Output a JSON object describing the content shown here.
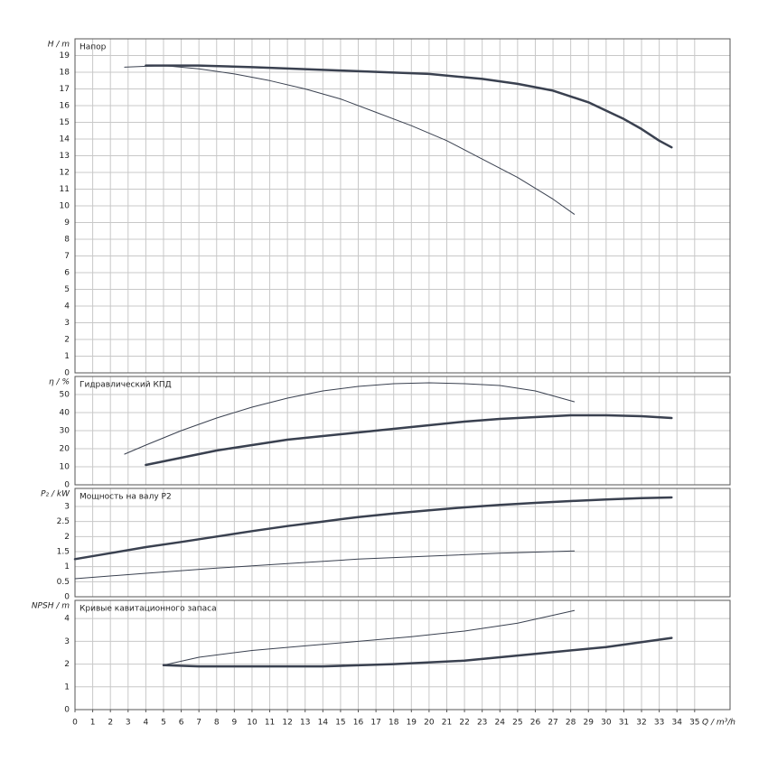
{
  "chart_data": [
    {
      "type": "line",
      "y_label": "H / m",
      "panel_label": "Напор",
      "xlim": [
        0,
        37
      ],
      "ylim": [
        0,
        20
      ],
      "yticks": [
        0,
        1,
        2,
        3,
        4,
        5,
        6,
        7,
        8,
        9,
        10,
        11,
        12,
        13,
        14,
        15,
        16,
        17,
        18,
        19
      ],
      "grid": true,
      "series": [
        {
          "color": "#3a4150",
          "line_width": 2.5,
          "x": [
            4,
            7,
            10,
            15,
            20,
            23,
            25,
            27,
            29,
            31,
            32,
            33,
            33.7
          ],
          "values": [
            18.4,
            18.4,
            18.3,
            18.1,
            17.9,
            17.6,
            17.3,
            16.9,
            16.2,
            15.2,
            14.6,
            13.9,
            13.5
          ]
        },
        {
          "color": "#3a4150",
          "line_width": 1,
          "x": [
            2.8,
            5,
            7,
            9,
            11,
            13,
            15,
            17,
            19,
            21,
            23,
            25,
            27,
            28.2
          ],
          "values": [
            18.3,
            18.4,
            18.2,
            17.9,
            17.5,
            17.0,
            16.4,
            15.6,
            14.8,
            13.9,
            12.8,
            11.7,
            10.4,
            9.5
          ]
        }
      ]
    },
    {
      "type": "line",
      "y_label": "η / %",
      "panel_label": "Гидравлический КПД",
      "xlim": [
        0,
        37
      ],
      "ylim": [
        0,
        60
      ],
      "yticks": [
        0,
        10,
        20,
        30,
        40,
        50
      ],
      "grid": true,
      "series": [
        {
          "color": "#3a4150",
          "line_width": 2.5,
          "x": [
            4,
            6,
            8,
            10,
            12,
            14,
            16,
            18,
            20,
            22,
            24,
            26,
            28,
            30,
            32,
            33.7
          ],
          "values": [
            11,
            15,
            19,
            22,
            25,
            27,
            29,
            31,
            33,
            35,
            36.5,
            37.5,
            38.5,
            38.5,
            38,
            37
          ]
        },
        {
          "color": "#3a4150",
          "line_width": 1,
          "x": [
            2.8,
            4,
            6,
            8,
            10,
            12,
            14,
            16,
            18,
            20,
            22,
            24,
            26,
            28.2
          ],
          "values": [
            17,
            22,
            30,
            37,
            43,
            48,
            52,
            54.5,
            56,
            56.5,
            56,
            55,
            52,
            46
          ]
        }
      ]
    },
    {
      "type": "line",
      "y_label": "P₂ / kW",
      "panel_label": "Мощность на валу P2",
      "xlim": [
        0,
        37
      ],
      "ylim": [
        0,
        3.6
      ],
      "yticks": [
        0,
        0.5,
        1,
        1.5,
        2,
        2.5,
        3
      ],
      "grid": true,
      "series": [
        {
          "color": "#3a4150",
          "line_width": 2.5,
          "x": [
            0,
            2,
            4,
            6,
            8,
            10,
            12,
            14,
            16,
            18,
            20,
            22,
            24,
            26,
            28,
            30,
            32,
            33.7
          ],
          "values": [
            1.25,
            1.45,
            1.65,
            1.82,
            2.0,
            2.18,
            2.35,
            2.5,
            2.65,
            2.77,
            2.87,
            2.97,
            3.05,
            3.12,
            3.18,
            3.23,
            3.28,
            3.3
          ]
        },
        {
          "color": "#3a4150",
          "line_width": 1,
          "x": [
            0,
            4,
            8,
            12,
            16,
            20,
            24,
            28.2
          ],
          "values": [
            0.6,
            0.78,
            0.95,
            1.1,
            1.25,
            1.35,
            1.45,
            1.52
          ]
        }
      ]
    },
    {
      "type": "line",
      "y_label": "NPSH / m",
      "panel_label": "Кривые кавитационного запаса",
      "xlim": [
        0,
        37
      ],
      "ylim": [
        0,
        4.8
      ],
      "yticks": [
        0,
        1,
        2,
        3,
        4
      ],
      "grid": true,
      "x_label": "Q / m³/h",
      "xticks": [
        0,
        1,
        2,
        3,
        4,
        5,
        6,
        7,
        8,
        9,
        10,
        11,
        12,
        13,
        14,
        15,
        16,
        17,
        18,
        19,
        20,
        21,
        22,
        23,
        24,
        25,
        26,
        27,
        28,
        29,
        30,
        31,
        32,
        33,
        34,
        35
      ],
      "series": [
        {
          "color": "#3a4150",
          "line_width": 2.5,
          "x": [
            5,
            7,
            10,
            14,
            18,
            22,
            26,
            30,
            33.7
          ],
          "values": [
            1.95,
            1.9,
            1.9,
            1.9,
            2.0,
            2.15,
            2.45,
            2.75,
            3.15
          ]
        },
        {
          "color": "#3a4150",
          "line_width": 1,
          "x": [
            5,
            7,
            10,
            13,
            16,
            19,
            22,
            25,
            28.2
          ],
          "values": [
            1.95,
            2.3,
            2.6,
            2.8,
            3.0,
            3.2,
            3.45,
            3.8,
            4.35
          ]
        }
      ]
    }
  ]
}
